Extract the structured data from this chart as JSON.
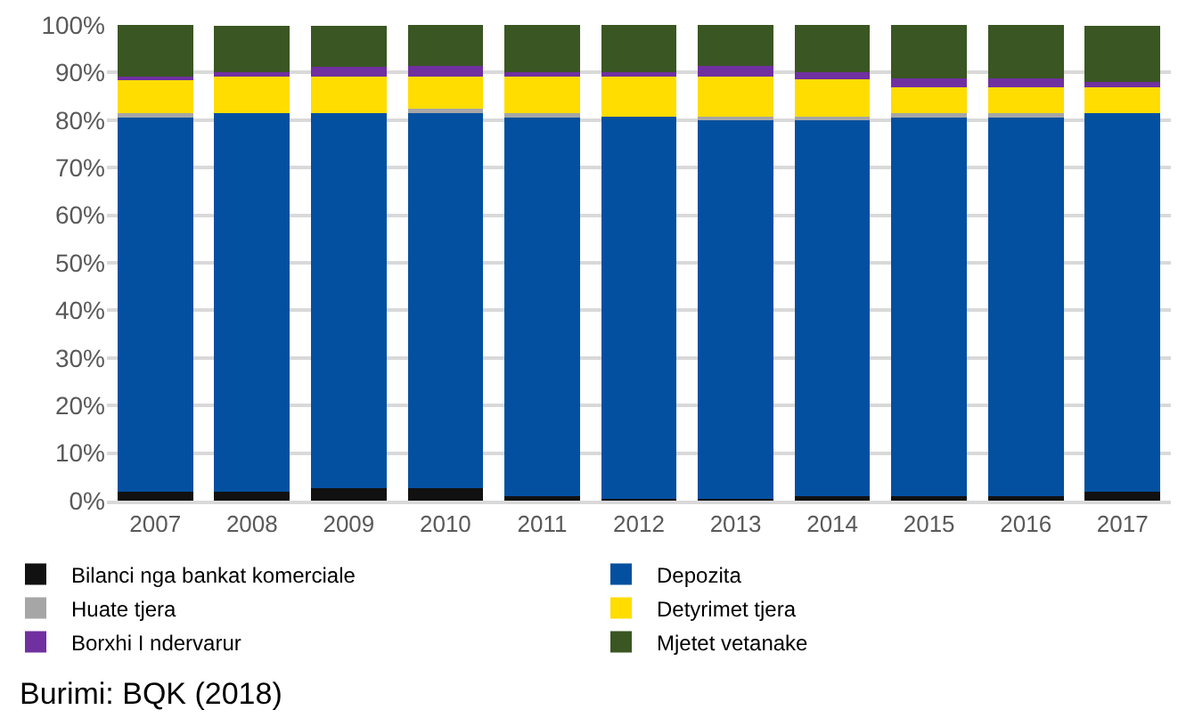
{
  "chart_data": {
    "type": "bar",
    "stacked": true,
    "grid": "y",
    "legend": "bottom",
    "categories": [
      "2007",
      "2008",
      "2009",
      "2010",
      "2011",
      "2012",
      "2013",
      "2014",
      "2015",
      "2016",
      "2017"
    ],
    "series": [
      {
        "name": "Bilanci nga bankat komerciale",
        "color": "#111111",
        "values": [
          1.8,
          1.8,
          2.7,
          2.7,
          1.0,
          0.3,
          0.3,
          1.0,
          1.0,
          1.0,
          1.8
        ]
      },
      {
        "name": "Depozita",
        "color": "#0450a0",
        "values": [
          79.0,
          79.7,
          78.8,
          78.8,
          79.8,
          80.5,
          79.7,
          79.0,
          79.8,
          79.8,
          79.7
        ]
      },
      {
        "name": "Huate tjera",
        "color": "#a6a6a6",
        "values": [
          0.6,
          null,
          null,
          0.9,
          0.6,
          null,
          0.8,
          0.8,
          0.7,
          0.7,
          null
        ]
      },
      {
        "name": "Detyrimet tjera",
        "color": "#ffdd00",
        "values": [
          7.1,
          7.6,
          7.6,
          6.8,
          7.8,
          8.4,
          8.4,
          7.7,
          5.4,
          5.4,
          5.4
        ]
      },
      {
        "name": "Borxhi I ndervarur",
        "color": "#7030a0",
        "values": [
          0.7,
          0.9,
          2.1,
          2.1,
          0.9,
          0.9,
          2.1,
          1.6,
          1.8,
          1.8,
          1.1
        ]
      },
      {
        "name": "Mjetet vetanake",
        "color": "#3a5622",
        "values": [
          10.8,
          9.9,
          8.7,
          8.7,
          9.9,
          9.9,
          8.7,
          9.9,
          11.3,
          11.3,
          11.9
        ]
      }
    ],
    "ylim": [
      0,
      100
    ],
    "yticks": [
      {
        "value": 0,
        "label": "0%"
      },
      {
        "value": 10,
        "label": "10%"
      },
      {
        "value": 20,
        "label": "20%"
      },
      {
        "value": 30,
        "label": "30%"
      },
      {
        "value": 40,
        "label": "40%"
      },
      {
        "value": 50,
        "label": "50%"
      },
      {
        "value": 60,
        "label": "60%"
      },
      {
        "value": 70,
        "label": "70%"
      },
      {
        "value": 80,
        "label": "80%"
      },
      {
        "value": 90,
        "label": "90%"
      },
      {
        "value": 100,
        "label": "100%"
      }
    ],
    "annotations": [
      "Burimi: BQK (2018)"
    ]
  }
}
